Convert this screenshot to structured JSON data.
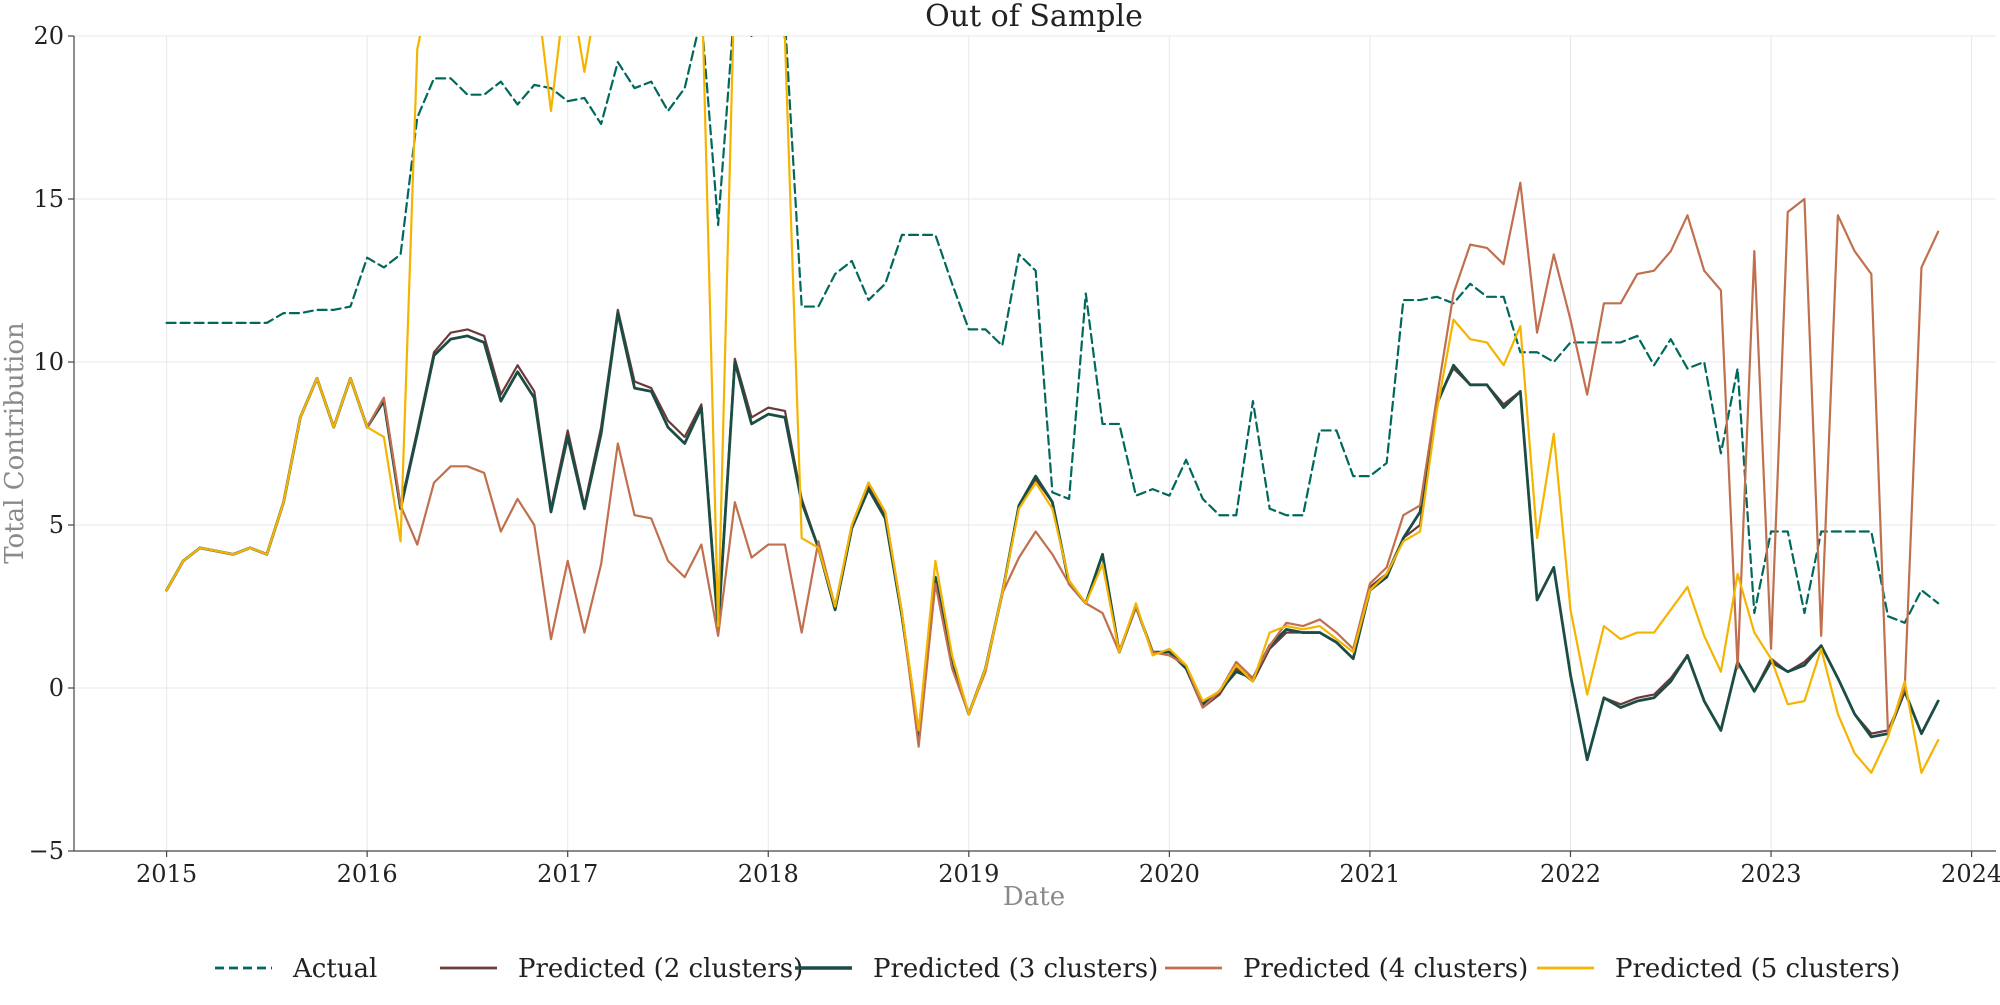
{
  "chart_data": {
    "type": "line",
    "title": "Out of Sample",
    "xlabel": "Date",
    "ylabel": "Total Contribution",
    "x_axis_type": "date",
    "xlim": [
      "2014-07-15",
      "2024-02-15"
    ],
    "ylim": [
      -5,
      20
    ],
    "x_ticks": [
      "2015",
      "2016",
      "2017",
      "2018",
      "2019",
      "2020",
      "2021",
      "2022",
      "2023",
      "2024"
    ],
    "y_ticks": [
      "−5",
      "0",
      "5",
      "10",
      "15",
      "20"
    ],
    "grid": true,
    "legend_position": "bottom-center",
    "x": [
      "2015-01",
      "2015-02",
      "2015-03",
      "2015-04",
      "2015-05",
      "2015-06",
      "2015-07",
      "2015-08",
      "2015-09",
      "2015-10",
      "2015-11",
      "2015-12",
      "2016-01",
      "2016-02",
      "2016-03",
      "2016-04",
      "2016-05",
      "2016-06",
      "2016-07",
      "2016-08",
      "2016-09",
      "2016-10",
      "2016-11",
      "2016-12",
      "2017-01",
      "2017-02",
      "2017-03",
      "2017-04",
      "2017-05",
      "2017-06",
      "2017-07",
      "2017-08",
      "2017-09",
      "2017-10",
      "2017-11",
      "2017-12",
      "2018-01",
      "2018-02",
      "2018-03",
      "2018-04",
      "2018-05",
      "2018-06",
      "2018-07",
      "2018-08",
      "2018-09",
      "2018-10",
      "2018-11",
      "2018-12",
      "2019-01",
      "2019-02",
      "2019-03",
      "2019-04",
      "2019-05",
      "2019-06",
      "2019-07",
      "2019-08",
      "2019-09",
      "2019-10",
      "2019-11",
      "2019-12",
      "2020-01",
      "2020-02",
      "2020-03",
      "2020-04",
      "2020-05",
      "2020-06",
      "2020-07",
      "2020-08",
      "2020-09",
      "2020-10",
      "2020-11",
      "2020-12",
      "2021-01",
      "2021-02",
      "2021-03",
      "2021-04",
      "2021-05",
      "2021-06",
      "2021-07",
      "2021-08",
      "2021-09",
      "2021-10",
      "2021-11",
      "2021-12",
      "2022-01",
      "2022-02",
      "2022-03",
      "2022-04",
      "2022-05",
      "2022-06",
      "2022-07",
      "2022-08",
      "2022-09",
      "2022-10",
      "2022-11",
      "2022-12",
      "2023-01",
      "2023-02",
      "2023-03",
      "2023-04",
      "2023-05",
      "2023-06",
      "2023-07",
      "2023-08",
      "2023-09",
      "2023-10",
      "2023-11"
    ],
    "series": [
      {
        "name": "Actual",
        "color": "#00695c",
        "dash": true,
        "width": 2.2,
        "values": [
          11.2,
          11.2,
          11.2,
          11.2,
          11.2,
          11.2,
          11.2,
          11.5,
          11.5,
          11.6,
          11.6,
          11.7,
          13.2,
          12.9,
          13.3,
          17.5,
          18.7,
          18.7,
          18.2,
          18.2,
          18.6,
          17.9,
          18.5,
          18.4,
          18.0,
          18.1,
          17.3,
          19.2,
          18.4,
          18.6,
          17.7,
          18.4,
          20.6,
          14.2,
          21.0,
          20.0,
          20.8,
          20.5,
          11.7,
          11.7,
          12.7,
          13.1,
          11.9,
          12.4,
          13.9,
          13.9,
          13.9,
          12.4,
          11.0,
          11.0,
          10.5,
          13.3,
          12.8,
          6.0,
          5.8,
          12.1,
          8.1,
          8.1,
          5.9,
          6.1,
          5.9,
          7.0,
          5.8,
          5.3,
          5.3,
          8.8,
          5.5,
          5.3,
          5.3,
          7.9,
          7.9,
          6.5,
          6.5,
          6.9,
          11.9,
          11.9,
          12.0,
          11.8,
          12.4,
          12.0,
          12.0,
          10.3,
          10.3,
          10.0,
          10.6,
          10.6,
          10.6,
          10.6,
          10.8,
          9.9,
          10.7,
          9.8,
          10.0,
          7.2,
          9.8,
          2.3,
          4.8,
          4.8,
          2.3,
          4.8,
          4.8,
          4.8,
          4.8,
          2.2,
          2.0,
          3.0,
          2.6
        ]
      },
      {
        "name": "Predicted (2 clusters)",
        "color": "#6b3a3a",
        "dash": false,
        "width": 2.2,
        "values": [
          3.0,
          3.9,
          4.3,
          4.2,
          4.1,
          4.3,
          4.1,
          5.7,
          8.3,
          9.5,
          8.0,
          9.5,
          8.0,
          8.9,
          5.6,
          7.9,
          10.3,
          10.9,
          11.0,
          10.8,
          9.0,
          9.9,
          9.1,
          5.5,
          7.9,
          5.6,
          8.0,
          11.6,
          9.4,
          9.2,
          8.2,
          7.7,
          8.7,
          1.9,
          10.1,
          8.3,
          8.6,
          8.5,
          5.8,
          4.3,
          2.5,
          4.9,
          6.2,
          5.3,
          2.3,
          -1.5,
          3.3,
          0.7,
          -0.8,
          0.6,
          2.9,
          5.6,
          6.4,
          5.7,
          3.2,
          2.6,
          4.1,
          1.1,
          2.5,
          1.1,
          1.1,
          0.6,
          -0.6,
          -0.2,
          0.6,
          0.2,
          1.2,
          1.7,
          1.7,
          1.7,
          1.4,
          0.9,
          3.1,
          3.5,
          4.6,
          5.0,
          8.8,
          9.8,
          9.3,
          9.3,
          8.7,
          9.1,
          2.7,
          3.7,
          0.4,
          -2.2,
          -0.3,
          -0.5,
          -0.3,
          -0.2,
          0.3,
          1.0,
          -0.4,
          -1.3,
          0.8,
          -0.1,
          0.9,
          0.5,
          0.8,
          1.3,
          0.3,
          -0.8,
          -1.4,
          -1.3,
          -0.1,
          -1.4,
          -0.4
        ]
      },
      {
        "name": "Predicted (3 clusters)",
        "color": "#1b4d45",
        "dash": false,
        "width": 2.8,
        "values": [
          3.0,
          3.9,
          4.3,
          4.2,
          4.1,
          4.3,
          4.1,
          5.7,
          8.3,
          9.5,
          8.0,
          9.5,
          8.0,
          8.8,
          5.5,
          7.8,
          10.2,
          10.7,
          10.8,
          10.6,
          8.8,
          9.7,
          8.9,
          5.4,
          7.7,
          5.5,
          7.8,
          11.5,
          9.2,
          9.1,
          8.0,
          7.5,
          8.6,
          1.8,
          10.0,
          8.1,
          8.4,
          8.3,
          5.7,
          4.3,
          2.4,
          4.9,
          6.1,
          5.2,
          2.2,
          -1.4,
          3.4,
          0.7,
          -0.8,
          0.6,
          2.9,
          5.6,
          6.5,
          5.7,
          3.2,
          2.6,
          4.1,
          1.1,
          2.5,
          1.1,
          1.1,
          0.6,
          -0.5,
          -0.1,
          0.5,
          0.3,
          1.3,
          1.8,
          1.7,
          1.7,
          1.4,
          0.9,
          3.0,
          3.4,
          4.6,
          5.4,
          8.7,
          9.9,
          9.3,
          9.3,
          8.6,
          9.1,
          2.7,
          3.7,
          0.4,
          -2.2,
          -0.3,
          -0.6,
          -0.4,
          -0.3,
          0.2,
          1.0,
          -0.4,
          -1.3,
          0.8,
          -0.1,
          0.8,
          0.5,
          0.7,
          1.3,
          0.3,
          -0.8,
          -1.5,
          -1.4,
          -0.1,
          -1.4,
          -0.4
        ]
      },
      {
        "name": "Predicted (4 clusters)",
        "color": "#c0704e",
        "dash": false,
        "width": 2.2,
        "values": [
          3.0,
          3.9,
          4.3,
          4.2,
          4.1,
          4.3,
          4.1,
          5.7,
          8.3,
          9.5,
          8.0,
          9.5,
          8.0,
          8.9,
          5.6,
          4.4,
          6.3,
          6.8,
          6.8,
          6.6,
          4.8,
          5.8,
          5.0,
          1.5,
          3.9,
          1.7,
          3.8,
          7.5,
          5.3,
          5.2,
          3.9,
          3.4,
          4.4,
          1.6,
          5.7,
          4.0,
          4.4,
          4.4,
          1.7,
          4.5,
          2.5,
          5.0,
          6.3,
          5.4,
          2.3,
          -1.8,
          3.2,
          0.6,
          -0.8,
          0.5,
          2.9,
          4.0,
          4.8,
          4.1,
          3.2,
          2.6,
          2.3,
          1.1,
          2.5,
          1.1,
          1.0,
          0.7,
          -0.6,
          -0.1,
          0.8,
          0.3,
          1.3,
          2.0,
          1.9,
          2.1,
          1.7,
          1.2,
          3.2,
          3.7,
          5.3,
          5.6,
          8.9,
          12.1,
          13.6,
          13.5,
          13.0,
          15.5,
          10.9,
          13.3,
          11.3,
          9.0,
          11.8,
          11.8,
          12.7,
          12.8,
          13.4,
          14.5,
          12.8,
          12.2,
          0.6,
          13.4,
          1.2,
          14.6,
          15.0,
          1.6,
          14.5,
          13.4,
          12.7,
          -1.4,
          0.0,
          12.9,
          14.0
        ]
      },
      {
        "name": "Predicted (5 clusters)",
        "color": "#f4b400",
        "dash": false,
        "width": 2.2,
        "values": [
          3.0,
          3.9,
          4.3,
          4.2,
          4.1,
          4.3,
          4.1,
          5.7,
          8.3,
          9.5,
          8.0,
          9.5,
          8.0,
          7.7,
          4.5,
          19.6,
          22.0,
          22.0,
          22.0,
          22.0,
          22.0,
          22.0,
          22.0,
          17.7,
          22.0,
          18.9,
          22.0,
          22.0,
          22.0,
          22.0,
          22.0,
          22.0,
          22.0,
          1.9,
          22.0,
          22.0,
          22.0,
          19.9,
          4.6,
          4.3,
          2.5,
          5.0,
          6.3,
          5.4,
          2.3,
          -1.3,
          3.9,
          1.0,
          -0.8,
          0.6,
          2.9,
          5.5,
          6.3,
          5.5,
          3.3,
          2.6,
          3.8,
          1.1,
          2.6,
          1.0,
          1.2,
          0.7,
          -0.4,
          -0.1,
          0.7,
          0.2,
          1.7,
          1.9,
          1.8,
          1.9,
          1.5,
          1.1,
          3.0,
          3.5,
          4.5,
          4.8,
          8.5,
          11.3,
          10.7,
          10.6,
          9.9,
          11.1,
          4.6,
          7.8,
          2.4,
          -0.2,
          1.9,
          1.5,
          1.7,
          1.7,
          2.4,
          3.1,
          1.6,
          0.5,
          3.5,
          1.7,
          0.9,
          -0.5,
          -0.4,
          1.2,
          -0.8,
          -2.0,
          -2.6,
          -1.5,
          0.2,
          -2.6,
          -1.6
        ]
      }
    ]
  }
}
